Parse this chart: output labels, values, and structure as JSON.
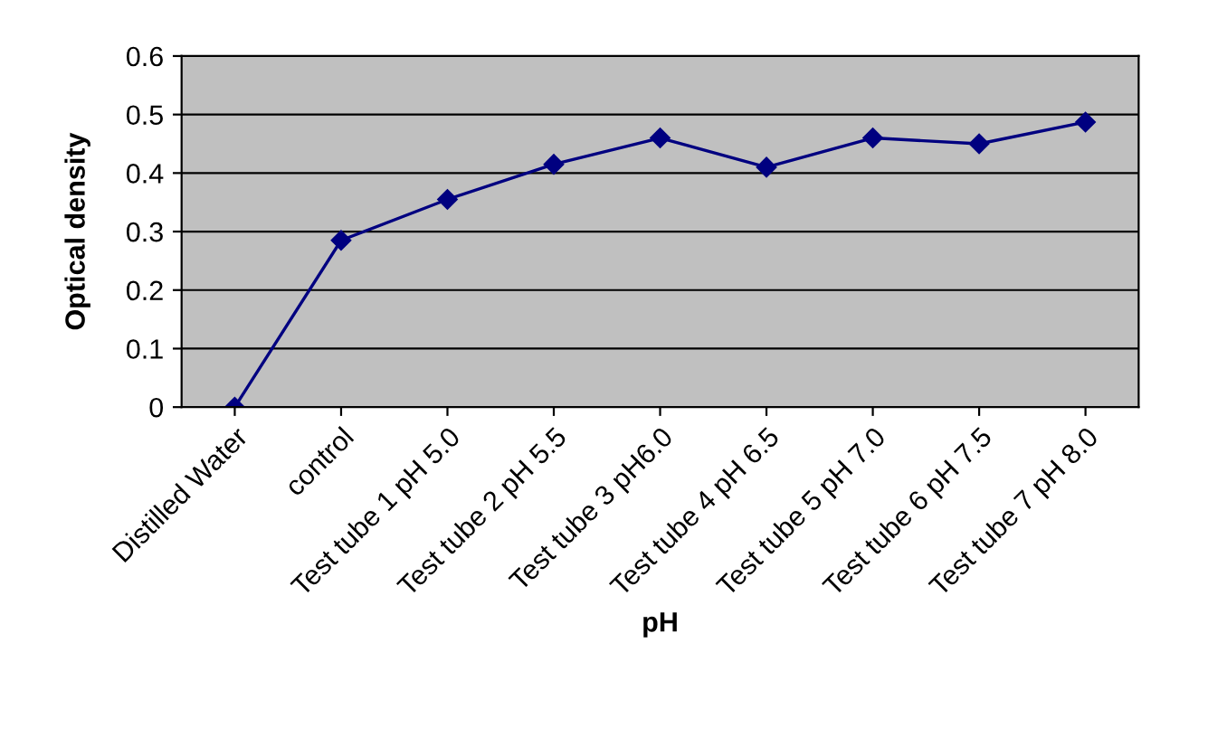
{
  "chart_data": {
    "type": "line",
    "xlabel": "pH",
    "ylabel": "Optical density",
    "categories": [
      "Distilled Water",
      "control",
      "Test tube 1 pH 5.0",
      "Test tube 2 pH 5.5",
      "Test tube 3 pH6.0",
      "Test tube 4 pH 6.5",
      "Test tube 5 pH 7.0",
      "Test tube 6 pH 7.5",
      "Test tube 7 pH 8.0"
    ],
    "series": [
      {
        "color": "#000080",
        "values": [
          0,
          0.285,
          0.355,
          0.415,
          0.46,
          0.41,
          0.46,
          0.45,
          0.487
        ]
      }
    ],
    "ylim": [
      0,
      0.6
    ],
    "yticks": [
      0,
      0.1,
      0.2,
      0.3,
      0.4,
      0.5,
      0.6
    ],
    "grid": "y",
    "legend": false,
    "marker": "diamond",
    "line_style": "solid"
  }
}
